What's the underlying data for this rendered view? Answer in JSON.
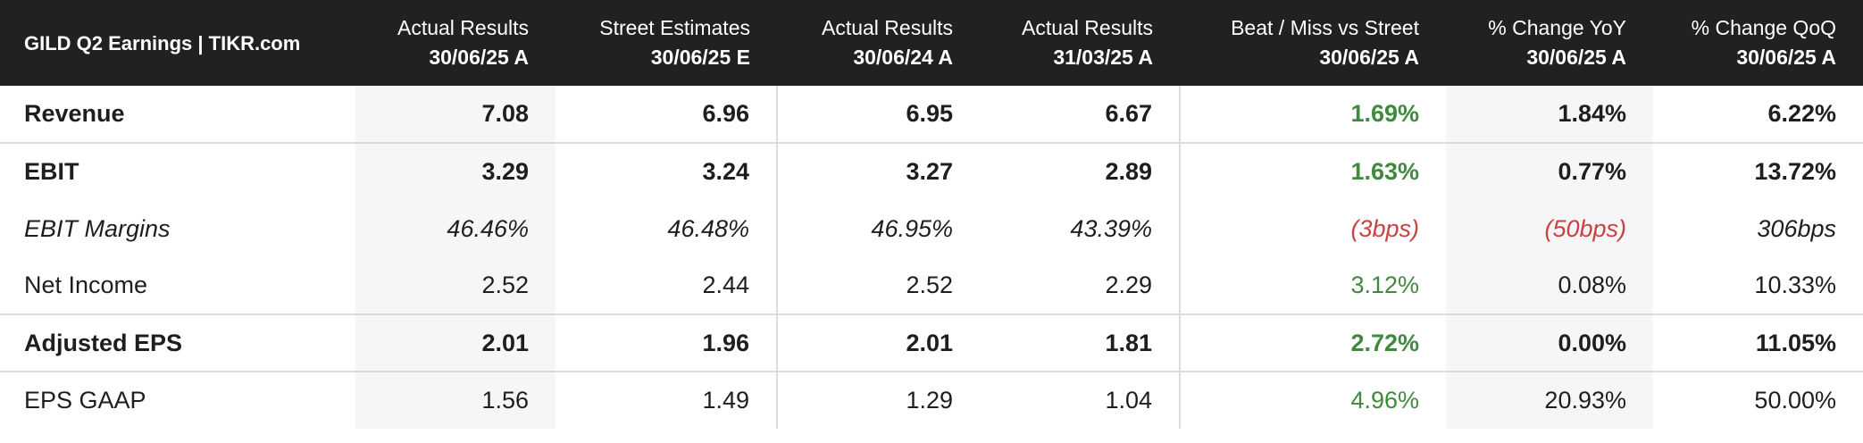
{
  "table": {
    "title": "GILD Q2 Earnings | TIKR.com",
    "columns": [
      {
        "label": "Actual Results",
        "sub": "30/06/25 A"
      },
      {
        "label": "Street Estimates",
        "sub": "30/06/25 E"
      },
      {
        "label": "Actual Results",
        "sub": "30/06/24 A"
      },
      {
        "label": "Actual Results",
        "sub": "31/03/25 A"
      },
      {
        "label": "Beat / Miss vs Street",
        "sub": "30/06/25 A"
      },
      {
        "label": "% Change YoY",
        "sub": "30/06/25 A"
      },
      {
        "label": "% Change QoQ",
        "sub": "30/06/25 A"
      }
    ],
    "rows": [
      {
        "label": "Revenue",
        "values": [
          "7.08",
          "6.96",
          "6.95",
          "6.67",
          "1.69%",
          "1.84%",
          "6.22%"
        ]
      },
      {
        "label": "EBIT",
        "values": [
          "3.29",
          "3.24",
          "3.27",
          "2.89",
          "1.63%",
          "0.77%",
          "13.72%"
        ]
      },
      {
        "label": "EBIT Margins",
        "values": [
          "46.46%",
          "46.48%",
          "46.95%",
          "43.39%",
          "(3bps)",
          "(50bps)",
          "306bps"
        ]
      },
      {
        "label": "Net Income",
        "values": [
          "2.52",
          "2.44",
          "2.52",
          "2.29",
          "3.12%",
          "0.08%",
          "10.33%"
        ]
      },
      {
        "label": "Adjusted EPS",
        "values": [
          "2.01",
          "1.96",
          "2.01",
          "1.81",
          "2.72%",
          "0.00%",
          "11.05%"
        ]
      },
      {
        "label": "EPS GAAP",
        "values": [
          "1.56",
          "1.49",
          "1.29",
          "1.04",
          "4.96%",
          "20.93%",
          "50.00%"
        ]
      }
    ]
  },
  "colors": {
    "header_bg": "#212121",
    "positive": "#3f8a3f",
    "negative": "#c94141",
    "shade": "#f6f6f6"
  }
}
